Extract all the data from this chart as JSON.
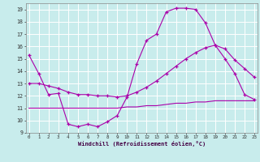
{
  "background_color": "#c8ecec",
  "grid_color": "#ffffff",
  "line_color": "#aa00aa",
  "xlim": [
    -0.3,
    23.3
  ],
  "ylim": [
    9,
    19.5
  ],
  "xticks": [
    0,
    1,
    2,
    3,
    4,
    5,
    6,
    7,
    8,
    9,
    10,
    11,
    12,
    13,
    14,
    15,
    16,
    17,
    18,
    19,
    20,
    21,
    22,
    23
  ],
  "yticks": [
    9,
    10,
    11,
    12,
    13,
    14,
    15,
    16,
    17,
    18,
    19
  ],
  "xlabel": "Windchill (Refroidissement éolien,°C)",
  "series1_x": [
    0,
    1,
    2,
    3,
    4,
    5,
    6,
    7,
    8,
    9,
    10,
    11,
    12,
    13,
    14,
    15,
    16,
    17,
    18,
    19,
    20,
    21,
    22,
    23
  ],
  "series1_y": [
    15.3,
    13.8,
    12.1,
    12.2,
    9.7,
    9.5,
    9.7,
    9.5,
    9.9,
    10.4,
    11.9,
    14.6,
    16.5,
    17.0,
    18.8,
    19.1,
    19.1,
    19.0,
    17.9,
    16.1,
    15.0,
    13.8,
    12.1,
    11.7
  ],
  "series2_x": [
    0,
    1,
    2,
    3,
    4,
    5,
    6,
    7,
    8,
    9,
    10,
    11,
    12,
    13,
    14,
    15,
    16,
    17,
    18,
    19,
    20,
    21,
    22,
    23
  ],
  "series2_y": [
    13.0,
    13.0,
    12.8,
    12.6,
    12.3,
    12.1,
    12.1,
    12.0,
    12.0,
    11.9,
    12.0,
    12.3,
    12.7,
    13.2,
    13.8,
    14.4,
    15.0,
    15.5,
    15.9,
    16.1,
    15.8,
    14.9,
    14.2,
    13.5
  ],
  "series3_x": [
    0,
    1,
    2,
    3,
    4,
    5,
    6,
    7,
    8,
    9,
    10,
    11,
    12,
    13,
    14,
    15,
    16,
    17,
    18,
    19,
    20,
    21,
    22,
    23
  ],
  "series3_y": [
    11.0,
    11.0,
    11.0,
    11.0,
    11.0,
    11.0,
    11.0,
    11.0,
    11.0,
    11.0,
    11.1,
    11.1,
    11.2,
    11.2,
    11.3,
    11.4,
    11.4,
    11.5,
    11.5,
    11.6,
    11.6,
    11.6,
    11.6,
    11.6
  ]
}
